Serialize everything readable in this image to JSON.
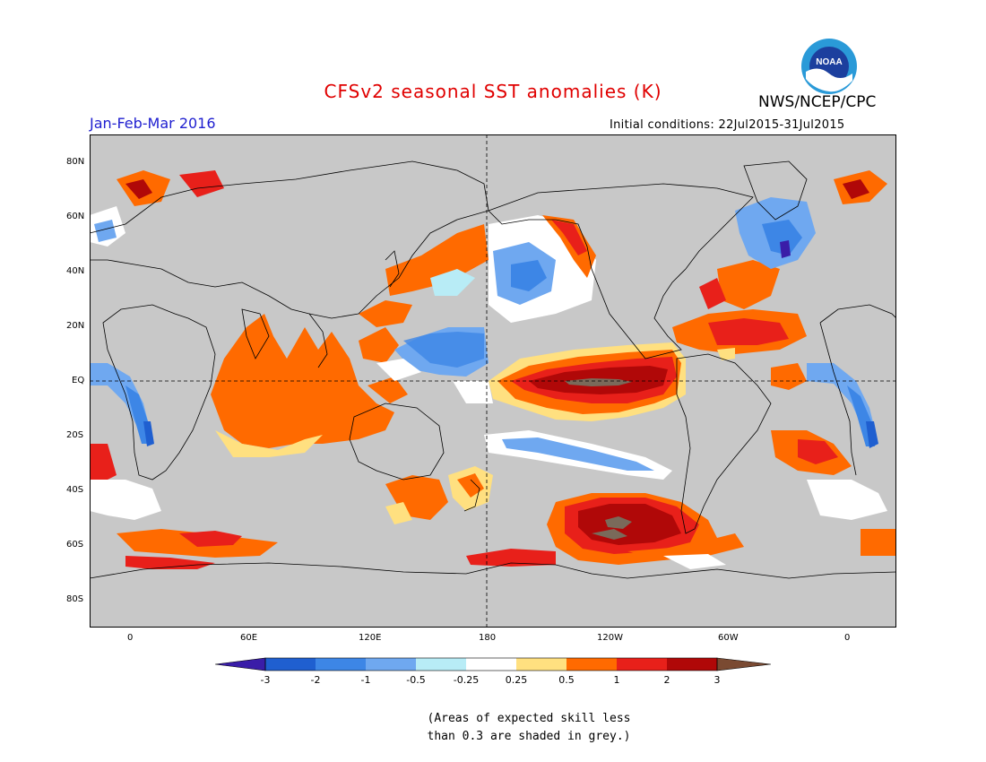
{
  "title": "CFSv2 seasonal SST anomalies (K)",
  "agency": "NWS/NCEP/CPC",
  "logo_text": "NOAA",
  "period": "Jan-Feb-Mar 2016",
  "initial_conditions": "Initial conditions: 22Jul2015-31Jul2015",
  "lat_labels": [
    "80N",
    "60N",
    "40N",
    "20N",
    "EQ",
    "20S",
    "40S",
    "60S",
    "80S"
  ],
  "lon_labels": [
    "0",
    "60E",
    "120E",
    "180",
    "120W",
    "60W",
    "0"
  ],
  "colorbar": {
    "labels": [
      "-3",
      "-2",
      "-1",
      "-0.5",
      "-0.25",
      "0.25",
      "0.5",
      "1",
      "2",
      "3"
    ],
    "colors": [
      "#3a1da8",
      "#1f5fd0",
      "#3d86e6",
      "#6fa8f0",
      "#b8ecf6",
      "#ffffff",
      "#ffe080",
      "#ff6a00",
      "#e8201a",
      "#b00808",
      "#7a4a32"
    ]
  },
  "note_line1": "(Areas of expected skill less",
  "note_line2": "than 0.3 are shaded in grey.)",
  "colors": {
    "grey_mask": "#c8c8c8",
    "title_red": "#e00000",
    "period_blue": "#2020d0"
  }
}
